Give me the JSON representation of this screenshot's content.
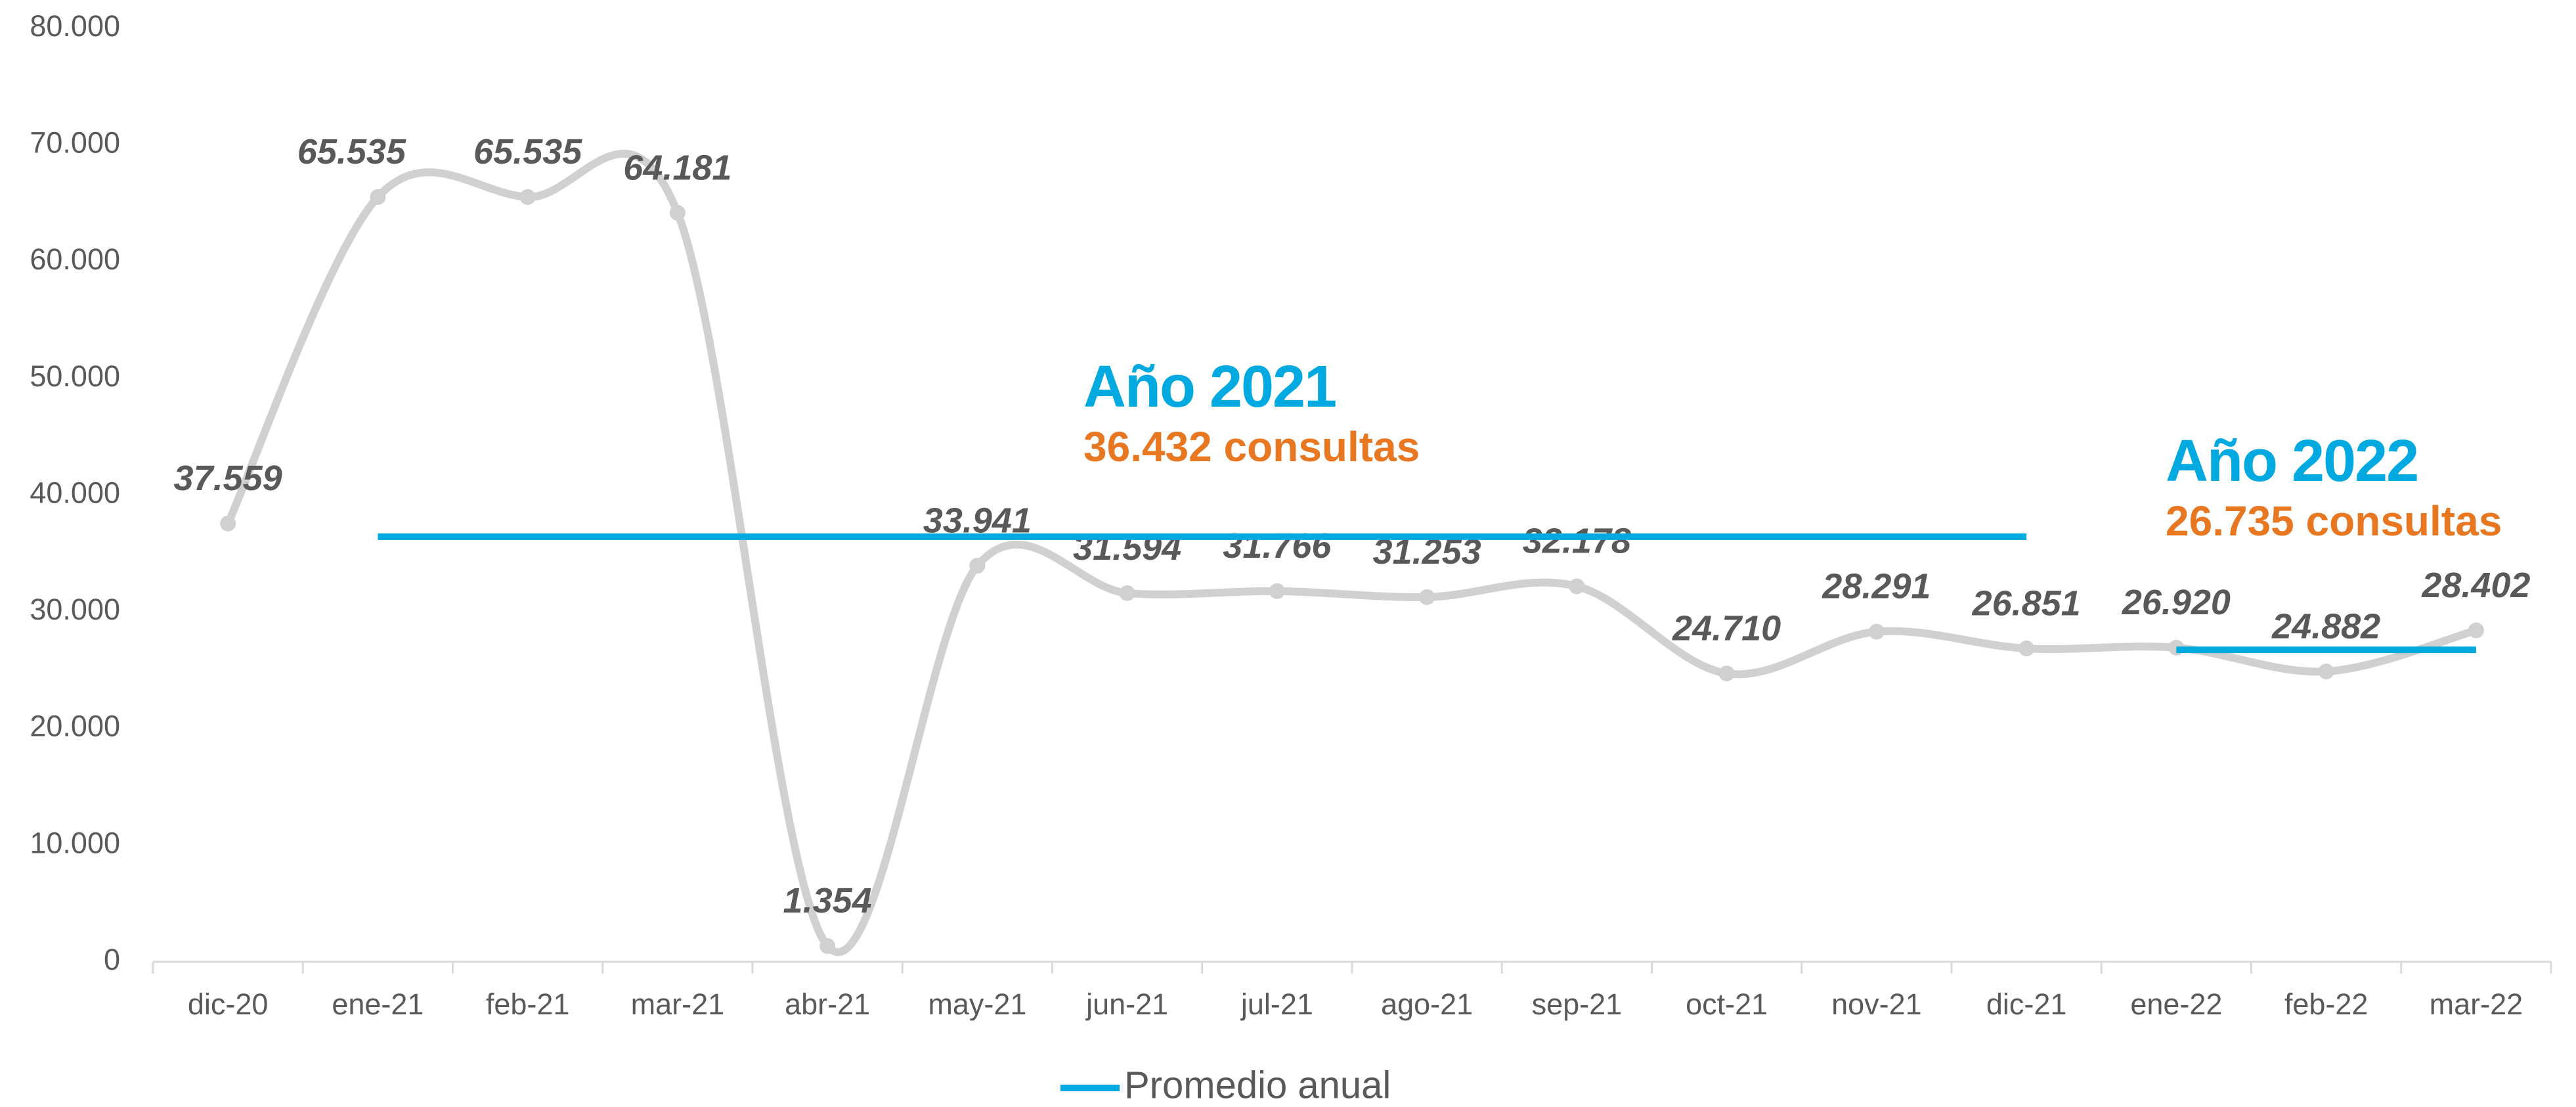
{
  "chart_data": {
    "type": "line",
    "categories": [
      "dic-20",
      "ene-21",
      "feb-21",
      "mar-21",
      "abr-21",
      "may-21",
      "jun-21",
      "jul-21",
      "ago-21",
      "sep-21",
      "oct-21",
      "nov-21",
      "dic-21",
      "ene-22",
      "feb-22",
      "mar-22"
    ],
    "values": [
      37559,
      65535,
      65535,
      64181,
      1354,
      33941,
      31594,
      31766,
      31253,
      32178,
      24710,
      28291,
      26851,
      26920,
      24882,
      28402
    ],
    "value_labels": [
      "37.559",
      "65.535",
      "65.535",
      "64.181",
      "1.354",
      "33.941",
      "31.594",
      "31.766",
      "31.253",
      "32.178",
      "24.710",
      "28.291",
      "26.851",
      "26.920",
      "24.882",
      "28.402"
    ],
    "color": "#d0d0d0",
    "ylim": [
      0,
      80000
    ],
    "yticks": [
      0,
      {
        "value": 10000,
        "label": "10.000"
      },
      {
        "value": 20000,
        "label": "20.000"
      },
      {
        "value": 30000,
        "label": "30.000"
      },
      {
        "value": 40000,
        "label": "40.000"
      },
      {
        "value": 50000,
        "label": "50.000"
      },
      {
        "value": 60000,
        "label": "60.000"
      },
      {
        "value": 70000,
        "label": "70.000"
      },
      {
        "value": 80000,
        "label": "80.000"
      }
    ],
    "average": {
      "name": "Promedio anual",
      "color": "#00a9e0",
      "segments": [
        {
          "start": "ene-21",
          "end": "dic-21",
          "value": 36432,
          "title": "Año 2021",
          "text": "36.432 consultas"
        },
        {
          "start": "ene-22",
          "end": "mar-22",
          "value": 26735,
          "title": "Año 2022",
          "text": "26.735 consultas"
        }
      ]
    },
    "annotation_color": "#e87722",
    "legend": "bottom"
  }
}
